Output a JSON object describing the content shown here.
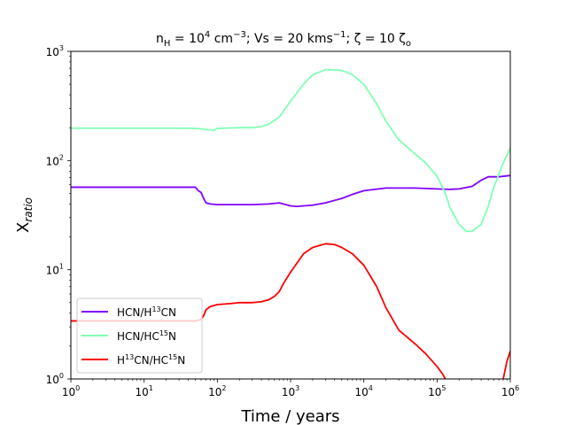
{
  "chart_data": {
    "type": "line",
    "title": {
      "n": "n",
      "n_sub": "H",
      "eq1": " = 10",
      "exp1": "4",
      "unit1": " cm",
      "exp2": "−3",
      "vs": "; Vs = 20 kms",
      "exp3": "−1",
      "zeta_part": "; ζ = 10 ζ",
      "zeta_sub": "o"
    },
    "xlabel": "Time / years",
    "ylabel": {
      "main": "X",
      "sub": "ratio"
    },
    "xscale": "log",
    "yscale": "log",
    "xlim": [
      1,
      1000000
    ],
    "ylim": [
      1,
      1000
    ],
    "xticks": [
      {
        "value": 1,
        "base": "10",
        "exp": "0"
      },
      {
        "value": 10,
        "base": "10",
        "exp": "1"
      },
      {
        "value": 100,
        "base": "10",
        "exp": "2"
      },
      {
        "value": 1000,
        "base": "10",
        "exp": "3"
      },
      {
        "value": 10000,
        "base": "10",
        "exp": "4"
      },
      {
        "value": 100000,
        "base": "10",
        "exp": "5"
      },
      {
        "value": 1000000,
        "base": "10",
        "exp": "6"
      }
    ],
    "yticks": [
      {
        "value": 1,
        "base": "10",
        "exp": "0"
      },
      {
        "value": 10,
        "base": "10",
        "exp": "1"
      },
      {
        "value": 100,
        "base": "10",
        "exp": "2"
      },
      {
        "value": 1000,
        "base": "10",
        "exp": "3"
      }
    ],
    "grid": false,
    "legend_position": "lower-left",
    "series": [
      {
        "name": {
          "a": "HCN/H",
          "sup": "13",
          "b": "CN"
        },
        "color": "#8000ff",
        "x": [
          1,
          10,
          30,
          50,
          55,
          60,
          65,
          70,
          80,
          100,
          200,
          300,
          500,
          700,
          1000,
          1200,
          2000,
          3000,
          5000,
          7000,
          10000,
          20000,
          50000,
          100000,
          150000,
          200000,
          300000,
          400000,
          500000,
          700000,
          1000000
        ],
        "y": [
          57,
          57,
          57,
          57,
          53,
          51,
          45,
          41,
          40,
          39.5,
          39.5,
          39.5,
          40,
          41,
          38.5,
          38,
          39,
          41,
          45,
          49,
          53,
          56,
          56,
          55,
          54.5,
          55,
          58,
          66,
          71,
          71,
          73
        ]
      },
      {
        "name": {
          "a": "HCN/HC",
          "sup": "15",
          "b": "N"
        },
        "color": "#80ffb4",
        "x": [
          1,
          10,
          30,
          50,
          70,
          90,
          100,
          200,
          300,
          400,
          500,
          700,
          1000,
          1500,
          2000,
          3000,
          5000,
          7000,
          10000,
          15000,
          20000,
          30000,
          50000,
          70000,
          100000,
          130000,
          150000,
          200000,
          250000,
          300000,
          400000,
          500000,
          600000,
          800000,
          1000000
        ],
        "y": [
          198,
          198,
          198,
          197,
          193,
          189,
          197,
          200,
          200,
          205,
          215,
          250,
          350,
          500,
          610,
          680,
          670,
          610,
          500,
          330,
          230,
          155,
          115,
          95,
          72,
          50,
          37,
          26,
          22.5,
          22.5,
          26,
          38,
          58,
          95,
          130
        ]
      },
      {
        "name": {
          "a": "H",
          "sup": "13",
          "b": "CN/HC",
          "sup2": "15",
          "b2": "N"
        },
        "color": "#ff0000",
        "x": [
          1,
          10,
          30,
          50,
          60,
          65,
          70,
          80,
          100,
          150,
          200,
          300,
          400,
          500,
          600,
          700,
          800,
          1000,
          1500,
          2000,
          3000,
          4000,
          5000,
          7000,
          10000,
          15000,
          20000,
          30000,
          50000,
          70000,
          100000,
          120000,
          135000,
          140000
        ],
        "y": [
          3.4,
          3.4,
          3.4,
          3.4,
          3.5,
          3.8,
          4.3,
          4.6,
          4.8,
          4.9,
          5.0,
          5.0,
          5.1,
          5.3,
          5.7,
          6.3,
          7.5,
          9.5,
          14,
          16,
          17.3,
          17,
          16,
          14,
          11,
          7,
          4.5,
          2.8,
          2.1,
          1.7,
          1.3,
          1.1,
          0.95,
          0.9
        ]
      },
      {
        "name": {
          "a": "H",
          "sup": "13",
          "b": "CN/HC",
          "sup2": "15",
          "b2": "N"
        },
        "color": "#ff0000",
        "segment_of": 2,
        "x": [
          800000,
          900000,
          1000000
        ],
        "y": [
          1.0,
          1.45,
          1.8
        ]
      }
    ]
  }
}
